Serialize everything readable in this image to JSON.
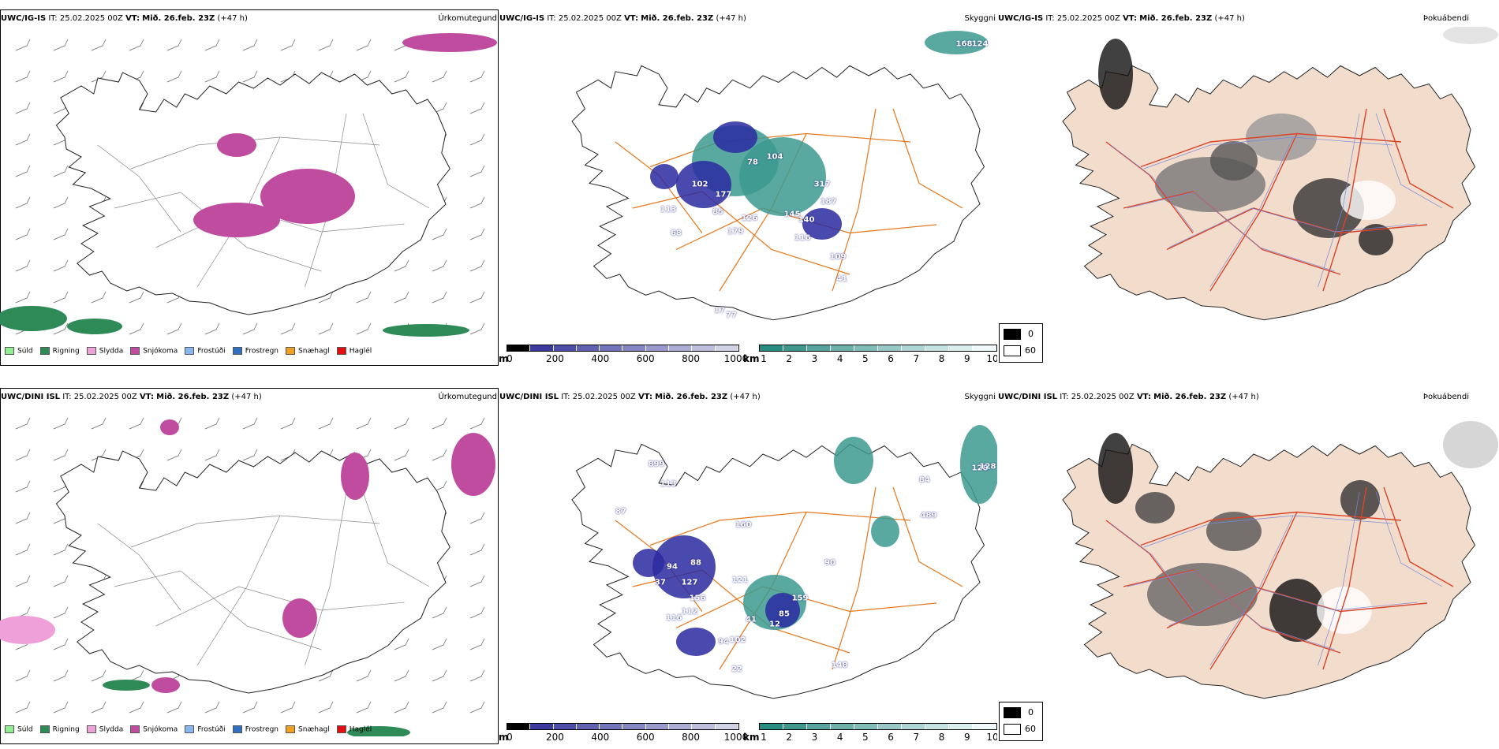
{
  "rows": [
    {
      "model": "UWC/IG-IS",
      "it_label": "IT:",
      "it_value": "25.02.2025 00Z",
      "vt_label": "VT:",
      "vt_value": "Mið. 26.feb. 23Z",
      "lead": "(+47 h)",
      "panels": [
        {
          "title": "Úrkomutegund"
        },
        {
          "title": "Skyggni"
        },
        {
          "title": "Þokuábendi"
        }
      ],
      "visibility_labels": [
        "102",
        "177",
        "85",
        "113",
        "68",
        "126",
        "179",
        "78",
        "104",
        "317",
        "145",
        "140",
        "187",
        "116",
        "109",
        "41",
        "17",
        "77",
        "124",
        "168"
      ]
    },
    {
      "model": "UWC/DINI ISL",
      "it_label": "IT:",
      "it_value": "25.02.2025 00Z",
      "vt_label": "VT:",
      "vt_value": "Mið. 26.feb. 23Z",
      "lead": "(+47 h)",
      "panels": [
        {
          "title": "Úrkomutegund"
        },
        {
          "title": "Skyggni"
        },
        {
          "title": "Þokuábendi"
        }
      ],
      "visibility_labels": [
        "94",
        "88",
        "37",
        "127",
        "156",
        "112",
        "116",
        "41",
        "94",
        "102",
        "22",
        "128",
        "85",
        "12",
        "159",
        "121",
        "90",
        "148",
        "113",
        "87",
        "160",
        "489",
        "84",
        "128",
        "899"
      ]
    }
  ],
  "precip_legend": [
    {
      "label": "Súld",
      "color": "#90ee90"
    },
    {
      "label": "Rigning",
      "color": "#2e8b57"
    },
    {
      "label": "Slydda",
      "color": "#f0a0d8"
    },
    {
      "label": "Snjókoma",
      "color": "#c04ca0"
    },
    {
      "label": "Frostúði",
      "color": "#87b8f0"
    },
    {
      "label": "Frostregn",
      "color": "#2f6fc0"
    },
    {
      "label": "Snæhagl",
      "color": "#f0a020"
    },
    {
      "label": "Haglél",
      "color": "#e01010"
    }
  ],
  "vis_colorbar_m": {
    "unit": "m",
    "ticks": [
      "0",
      "200",
      "400",
      "600",
      "800",
      "1000"
    ]
  },
  "vis_colorbar_km": {
    "unit": "km",
    "ticks": [
      "1",
      "2",
      "3",
      "4",
      "5",
      "6",
      "7",
      "8",
      "9",
      "10"
    ]
  },
  "fog_legend": {
    "high": "0",
    "low": "60"
  },
  "colors": {
    "snow": "#c04ca0",
    "rain": "#2e8b57",
    "vis_m": "#2a2aa0",
    "vis_km": "#3c9a90",
    "roads": "#e8761a",
    "fog_land": "#f2dccb",
    "fog_roads": "#d9442a"
  }
}
